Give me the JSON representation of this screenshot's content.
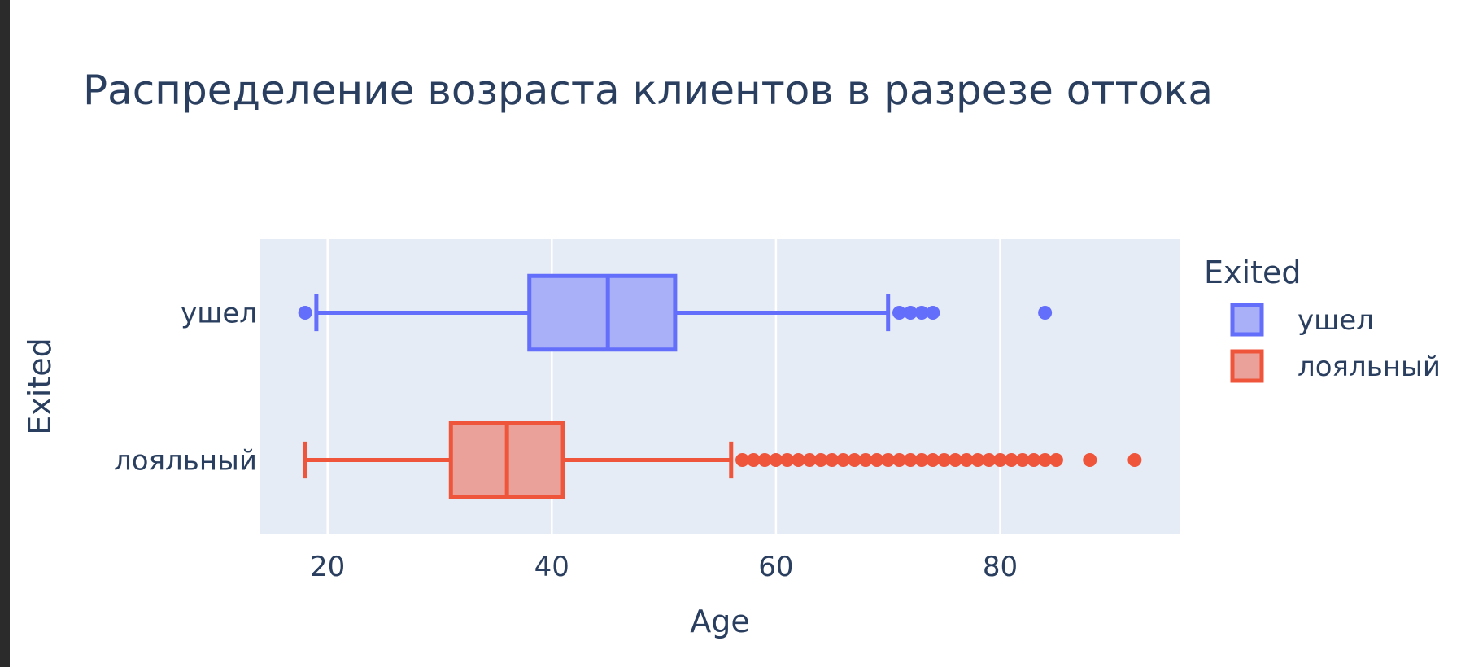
{
  "chart_data": {
    "type": "box",
    "orientation": "horizontal",
    "title": "Распределение возраста клиентов в разрезе оттока",
    "xlabel": "Age",
    "ylabel": "Exited",
    "xlim": [
      14,
      96
    ],
    "xticks": [
      20,
      40,
      60,
      80
    ],
    "grid": true,
    "plot_background": "#e5ecf6",
    "legend": {
      "title": "Exited",
      "placement": "right"
    },
    "categories": [
      "ушел",
      "лояльный"
    ],
    "series": [
      {
        "name": "ушел",
        "color": "#636efa",
        "fill": "#a9b0f8",
        "stats": {
          "lowerfence": 19,
          "q1": 38,
          "median": 45,
          "q3": 51,
          "upperfence": 70
        },
        "outliers": [
          18,
          71,
          72,
          73,
          74,
          84
        ]
      },
      {
        "name": "лояльный",
        "color": "#ef553b",
        "fill": "#e9a199",
        "stats": {
          "lowerfence": 18,
          "q1": 31,
          "median": 36,
          "q3": 41,
          "upperfence": 56
        },
        "outliers": [
          57,
          58,
          59,
          60,
          61,
          62,
          63,
          64,
          65,
          66,
          67,
          68,
          69,
          70,
          71,
          72,
          73,
          74,
          75,
          76,
          77,
          78,
          79,
          80,
          81,
          82,
          83,
          84,
          85,
          88,
          92
        ]
      }
    ]
  }
}
